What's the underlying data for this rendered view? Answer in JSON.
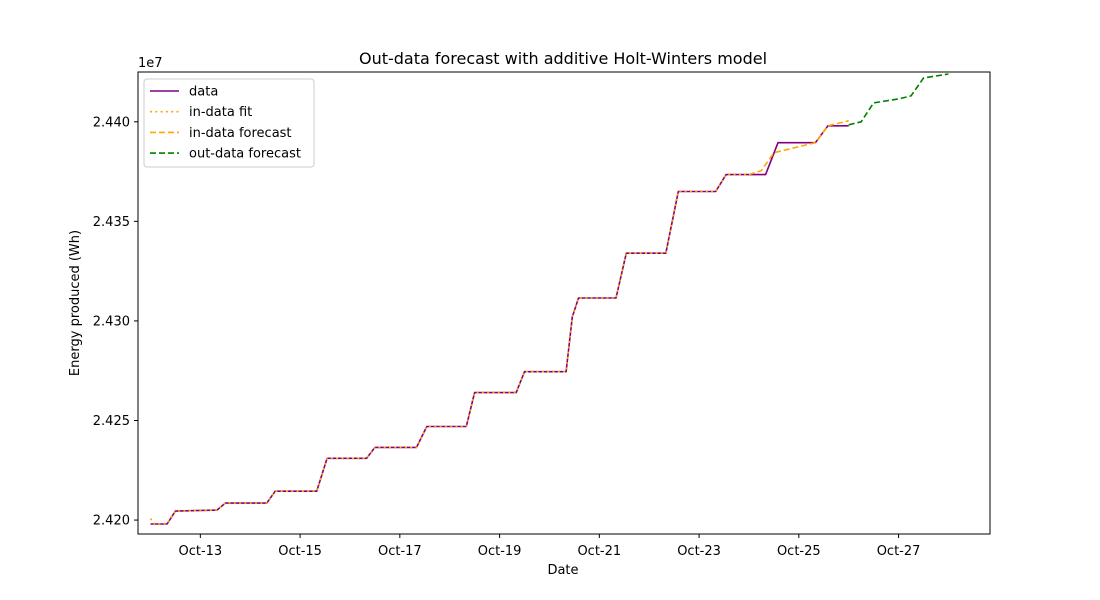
{
  "chart_data": {
    "type": "line",
    "title": "Out-data forecast with additive Holt-Winters model",
    "xlabel": "Date",
    "ylabel": "Energy produced (Wh)",
    "y_offset_label": "1e7",
    "x_ticks": [
      "Oct-13",
      "Oct-15",
      "Oct-17",
      "Oct-19",
      "Oct-21",
      "Oct-23",
      "Oct-25",
      "Oct-27"
    ],
    "y_ticks": [
      "2.420",
      "2.425",
      "2.430",
      "2.435",
      "2.440"
    ],
    "y_tick_values": [
      24200000,
      24250000,
      24300000,
      24350000,
      24400000
    ],
    "xlim": [
      "2023-10-11T18:00",
      "2023-10-28T20:00"
    ],
    "ylim": [
      24193000,
      24425000
    ],
    "grid": false,
    "legend_position": "upper left",
    "series": [
      {
        "name": "data",
        "color": "#800080",
        "style": "solid",
        "points": [
          [
            "2023-10-12T00:00",
            24198000
          ],
          [
            "2023-10-12T08:00",
            24198000
          ],
          [
            "2023-10-12T12:00",
            24204500
          ],
          [
            "2023-10-13T08:00",
            24205000
          ],
          [
            "2023-10-13T12:00",
            24208500
          ],
          [
            "2023-10-14T08:00",
            24208500
          ],
          [
            "2023-10-14T12:00",
            24214500
          ],
          [
            "2023-10-15T08:00",
            24214500
          ],
          [
            "2023-10-15T13:00",
            24231000
          ],
          [
            "2023-10-16T08:00",
            24231000
          ],
          [
            "2023-10-16T12:00",
            24236500
          ],
          [
            "2023-10-17T08:00",
            24236500
          ],
          [
            "2023-10-17T13:00",
            24247000
          ],
          [
            "2023-10-18T08:00",
            24247000
          ],
          [
            "2023-10-18T12:00",
            24264000
          ],
          [
            "2023-10-19T08:00",
            24264000
          ],
          [
            "2023-10-19T12:00",
            24274500
          ],
          [
            "2023-10-20T08:00",
            24274500
          ],
          [
            "2023-10-20T11:00",
            24302000
          ],
          [
            "2023-10-20T14:00",
            24311500
          ],
          [
            "2023-10-21T08:00",
            24311500
          ],
          [
            "2023-10-21T13:00",
            24334000
          ],
          [
            "2023-10-22T08:00",
            24334000
          ],
          [
            "2023-10-22T14:00",
            24365000
          ],
          [
            "2023-10-23T08:00",
            24365000
          ],
          [
            "2023-10-23T13:00",
            24373500
          ],
          [
            "2023-10-24T08:00",
            24373500
          ],
          [
            "2023-10-24T14:00",
            24389500
          ],
          [
            "2023-10-25T08:00",
            24389500
          ],
          [
            "2023-10-25T14:00",
            24398000
          ],
          [
            "2023-10-26T00:00",
            24398000
          ]
        ]
      },
      {
        "name": "in-data fit",
        "color": "#ffa500",
        "style": "dotted",
        "points": [
          [
            "2023-10-12T00:00",
            24200800
          ],
          [
            "2023-10-12T02:00",
            24198000
          ],
          [
            "2023-10-12T08:00",
            24198200
          ],
          [
            "2023-10-12T12:00",
            24204500
          ],
          [
            "2023-10-13T08:00",
            24205000
          ],
          [
            "2023-10-13T12:00",
            24208500
          ],
          [
            "2023-10-14T08:00",
            24208500
          ],
          [
            "2023-10-14T12:00",
            24214500
          ],
          [
            "2023-10-15T08:00",
            24214500
          ],
          [
            "2023-10-15T13:00",
            24231000
          ],
          [
            "2023-10-16T08:00",
            24231000
          ],
          [
            "2023-10-16T12:00",
            24236500
          ],
          [
            "2023-10-17T08:00",
            24236500
          ],
          [
            "2023-10-17T13:00",
            24247000
          ],
          [
            "2023-10-18T08:00",
            24247000
          ],
          [
            "2023-10-18T12:00",
            24264000
          ],
          [
            "2023-10-19T08:00",
            24264000
          ],
          [
            "2023-10-19T12:00",
            24274500
          ],
          [
            "2023-10-20T08:00",
            24274500
          ],
          [
            "2023-10-20T11:00",
            24302000
          ],
          [
            "2023-10-20T14:00",
            24311500
          ],
          [
            "2023-10-21T08:00",
            24311500
          ],
          [
            "2023-10-21T13:00",
            24334000
          ],
          [
            "2023-10-22T08:00",
            24334000
          ],
          [
            "2023-10-22T14:00",
            24365000
          ],
          [
            "2023-10-23T08:00",
            24365000
          ],
          [
            "2023-10-23T13:00",
            24373500
          ],
          [
            "2023-10-24T00:00",
            24373500
          ]
        ]
      },
      {
        "name": "in-data forecast",
        "color": "#ffa500",
        "style": "dashed",
        "points": [
          [
            "2023-10-24T00:00",
            24373500
          ],
          [
            "2023-10-24T06:00",
            24375500
          ],
          [
            "2023-10-24T12:00",
            24384500
          ],
          [
            "2023-10-25T00:00",
            24387500
          ],
          [
            "2023-10-25T08:00",
            24389500
          ],
          [
            "2023-10-25T14:00",
            24398000
          ],
          [
            "2023-10-26T00:00",
            24400500
          ]
        ]
      },
      {
        "name": "out-data forecast",
        "color": "#008000",
        "style": "dashed",
        "points": [
          [
            "2023-10-26T00:00",
            24398500
          ],
          [
            "2023-10-26T06:00",
            24400000
          ],
          [
            "2023-10-26T12:00",
            24409500
          ],
          [
            "2023-10-27T00:00",
            24411500
          ],
          [
            "2023-10-27T06:00",
            24413000
          ],
          [
            "2023-10-27T12:00",
            24422000
          ],
          [
            "2023-10-28T00:00",
            24424000
          ]
        ]
      }
    ]
  }
}
